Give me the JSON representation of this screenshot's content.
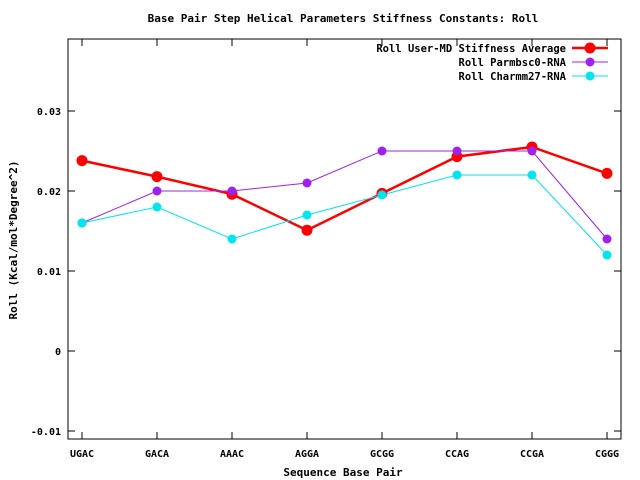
{
  "chart_data": {
    "type": "line",
    "title": "Base Pair Step Helical Parameters Stiffness Constants: Roll",
    "xlabel": "Sequence Base Pair",
    "ylabel": "Roll (Kcal/mol*Degree^2)",
    "categories": [
      "UGAC",
      "GACA",
      "AAAC",
      "AGGA",
      "GCGG",
      "CCAG",
      "CCGA",
      "CGGG"
    ],
    "ylim": [
      -0.011,
      0.039
    ],
    "yticks": [
      -0.01,
      0,
      0.01,
      0.02,
      0.03
    ],
    "ytick_labels": [
      "-0.01",
      "0",
      "0.01",
      "0.02",
      "0.03"
    ],
    "legend_position": "top-right",
    "grid": false,
    "series": [
      {
        "name": "Roll User-MD Stiffness Average",
        "color": "#ff0000",
        "values": [
          0.0238,
          0.0218,
          0.0196,
          0.0151,
          0.0197,
          0.0243,
          0.0255,
          0.0222
        ]
      },
      {
        "name": "Roll Parmbsc0-RNA",
        "color": "#a020f0",
        "values": [
          0.016,
          0.02,
          0.02,
          0.021,
          0.025,
          0.025,
          0.025,
          0.014
        ]
      },
      {
        "name": "Roll Charmm27-RNA",
        "color": "#00e5ee",
        "values": [
          0.016,
          0.018,
          0.014,
          0.017,
          0.0195,
          0.022,
          0.022,
          0.012
        ]
      }
    ]
  }
}
